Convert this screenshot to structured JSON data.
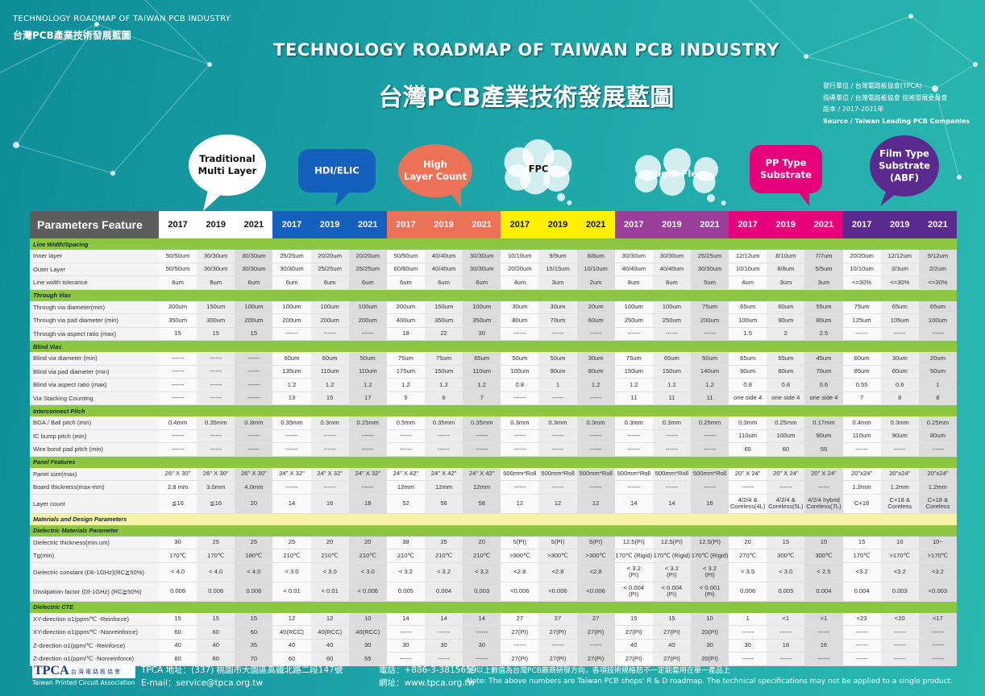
{
  "header": {
    "small_title": "TECHNOLOGY ROADMAP OF TAIWAN PCB INDUSTRY",
    "small_title_zh": "台灣PCB產業技術發展藍圖",
    "title": "TECHNOLOGY ROADMAP OF TAIWAN PCB INDUSTRY",
    "title_zh": "台灣PCB產業技術發展藍圖",
    "info": [
      "發行單位 / 台灣電路板協會(TPCA)",
      "指導單位 / 台灣電路板協會 技術發展委員會",
      "版本 / 2017-2021年",
      "Source / Taiwan Leading PCB Companies"
    ]
  },
  "table": {
    "header_label": "Parameters Feature",
    "groups": [
      {
        "name": "Traditional\nMulti Layer",
        "years": [
          2017,
          2019,
          2021
        ]
      },
      {
        "name": "HDI/ELIC",
        "years": [
          2017,
          2019,
          2021
        ]
      },
      {
        "name": "High\nLayer Count",
        "years": [
          2017,
          2019,
          2021
        ]
      },
      {
        "name": "FPC",
        "years": [
          2017,
          2019,
          2021
        ]
      },
      {
        "name": "Rigid-Flex",
        "years": [
          2017,
          2019,
          2021
        ]
      },
      {
        "name": "PP Type\nSubstrate",
        "years": [
          2017,
          2019,
          2021
        ]
      },
      {
        "name": "Film Type\nSubstrate\n(ABF)",
        "years": [
          2017,
          2019,
          2021
        ]
      }
    ],
    "sections": [
      {
        "title": "Line Width/Spacing",
        "rows": [
          {
            "label": "Inner layer",
            "cells": [
              "50/50um",
              "30/30um",
              "30/30um",
              "25/25um",
              "20/20um",
              "20/20um",
              "50/50um",
              "40/40um",
              "30/30um",
              "10/10um",
              "9/9um",
              "8/8um",
              "30/30um",
              "30/30um",
              "25/25um",
              "12/12um",
              "8/10um",
              "7/7um",
              "20/20um",
              "12/12um",
              "9/12um"
            ]
          },
          {
            "label": "Outer Layer",
            "cells": [
              "50/50um",
              "30/30um",
              "30/30um",
              "30/30um",
              "25/25um",
              "25/25um",
              "60/60um",
              "40/40um",
              "30/30um",
              "20/20um",
              "15/15um",
              "10/10um",
              "40/40um",
              "40/40um",
              "30/30um",
              "10/10um",
              "8/8um",
              "5/5um",
              "10/10um",
              "3/3um",
              "2/2um"
            ]
          },
          {
            "label": "Line width tolerance",
            "cells": [
              "8um",
              "8um",
              "6um",
              "6um",
              "6um",
              "6um",
              "6um",
              "6um",
              "6um",
              "4um",
              "3um",
              "2um",
              "8um",
              "8um",
              "5um",
              "4um",
              "3um",
              "3um",
              "<=30%",
              "<=30%",
              "<=30%"
            ]
          }
        ]
      },
      {
        "title": "Through Vias",
        "rows": [
          {
            "label": "Through via diameter(min)",
            "cells": [
              "200um",
              "150um",
              "100um",
              "100um",
              "100um",
              "100um",
              "200um",
              "150um",
              "100um",
              "30um",
              "30um",
              "20um",
              "100um",
              "100um",
              "75um",
              "65um",
              "60um",
              "55um",
              "75um",
              "65um",
              "65um"
            ]
          },
          {
            "label": "Through via pad diameter (min)",
            "cells": [
              "350um",
              "300um",
              "200um",
              "200um",
              "200um",
              "200um",
              "400um",
              "350um",
              "350um",
              "80um",
              "70um",
              "60um",
              "250um",
              "250um",
              "200um",
              "100um",
              "90um",
              "80um",
              "125um",
              "105um",
              "100um"
            ]
          },
          {
            "label": "Through via aspect ratio (max)",
            "cells": [
              "15",
              "15",
              "15",
              "------",
              "------",
              "------",
              "18",
              "22",
              "30",
              "------",
              "------",
              "------",
              "------",
              "------",
              "------",
              "1.5",
              "2",
              "2.5",
              "------",
              "------",
              "------"
            ]
          }
        ]
      },
      {
        "title": "Blind Vias",
        "rows": [
          {
            "label": "Blind via diameter (min)",
            "cells": [
              "------",
              "------",
              "------",
              "60um",
              "60um",
              "50um",
              "75um",
              "75um",
              "65um",
              "50um",
              "50um",
              "30um",
              "75um",
              "65um",
              "50um",
              "65um",
              "55um",
              "45um",
              "60um",
              "30um",
              "20um"
            ]
          },
          {
            "label": "Blind via pad diameter (min)",
            "cells": [
              "------",
              "------",
              "------",
              "135um",
              "110um",
              "110um",
              "175um",
              "150um",
              "110um",
              "100um",
              "90um",
              "80um",
              "150um",
              "150um",
              "140um",
              "90um",
              "80um",
              "70um",
              "85um",
              "60um",
              "50um"
            ]
          },
          {
            "label": "Blind via aspect ratio (max)",
            "cells": [
              "------",
              "------",
              "------",
              "1.2",
              "1.2",
              "1.2",
              "1.2",
              "1.2",
              "1.2",
              "0.8",
              "1",
              "1.2",
              "1.2",
              "1.2",
              "1.2",
              "0.8",
              "0.8",
              "0.6",
              "0.55",
              "0.6",
              "1"
            ]
          },
          {
            "label": "Via Stacking Counting",
            "cells": [
              "------",
              "------",
              "------",
              "13",
              "15",
              "17",
              "5",
              "6",
              "7",
              "------",
              "------",
              "------",
              "11",
              "11",
              "11",
              "one side 4",
              "one side 4",
              "one side 4",
              "7",
              "8",
              "8"
            ]
          }
        ]
      },
      {
        "title": "Interconnect Pitch",
        "rows": [
          {
            "label": "BGA / Ball pitch (min)",
            "cells": [
              "0.4mm",
              "0.35mm",
              "0.3mm",
              "0.35mm",
              "0.3mm",
              "0.25mm",
              "0.5mm",
              "0.35mm",
              "0.35mm",
              "0.3mm",
              "0.3mm",
              "0.3mm",
              "0.3mm",
              "0.3mm",
              "0.25mm",
              "0.3mm",
              "0.25mm",
              "0.17mm",
              "0.4mm",
              "0.3mm",
              "0.25mm"
            ]
          },
          {
            "label": "IC bump pitch (min)",
            "cells": [
              "------",
              "------",
              "------",
              "------",
              "------",
              "------",
              "------",
              "------",
              "------",
              "------",
              "------",
              "------",
              "------",
              "------",
              "------",
              "110um",
              "100um",
              "90um",
              "110um",
              "90um",
              "80um"
            ]
          },
          {
            "label": "Wire bond pad pitch (min)",
            "cells": [
              "------",
              "------",
              "------",
              "------",
              "------",
              "------",
              "------",
              "------",
              "------",
              "------",
              "------",
              "------",
              "------",
              "------",
              "------",
              "65",
              "60",
              "55",
              "------",
              "------",
              "------"
            ]
          }
        ]
      },
      {
        "title": "Panel Features",
        "rows": [
          {
            "label": "Panel size(max)",
            "cells": [
              "26\" X 30\"",
              "26\" X 30\"",
              "26\" X 30\"",
              "24\" X 32\"",
              "24\" X 32\"",
              "24\" X 32\"",
              "24\" X 42\"",
              "24\" X 42\"",
              "24\" X 42\"",
              "500mm*Roll",
              "500mm*Roll",
              "500mm*Roll",
              "500mm*Roll",
              "500mm*Roll",
              "500mm*Roll",
              "20\" X 24\"",
              "20\" X 24\"",
              "20\" X 24\"",
              "20\"x24\"",
              "20\"x24\"",
              "20\"x24\""
            ]
          },
          {
            "label": "Board thickness(max-mm)",
            "cells": [
              "2.8 mm",
              "3.0mm",
              "4.0mm",
              "------",
              "------",
              "------",
              "12mm",
              "12mm",
              "12mm",
              "------",
              "------",
              "------",
              "------",
              "------",
              "------",
              "------",
              "------",
              "------",
              "1.2mm",
              "1.2mm",
              "1.2mm"
            ]
          },
          {
            "label": "Layer count",
            "cells": [
              "≦16",
              "≦16",
              "20",
              "14",
              "16",
              "18",
              "52",
              "56",
              "58",
              "12",
              "12",
              "12",
              "14",
              "14",
              "16",
              "4/2/4 &\nCoreless(4L)",
              "4/2/4 &\nCoreless(5L)",
              "4/2/4 hybrid\nCoreless(7L)",
              "C+16",
              "C+18 &\nCoreless",
              "C+18 &\nCoreless"
            ]
          }
        ]
      },
      {
        "title": "Materials and Design Parameters",
        "rows": []
      },
      {
        "title": "Dielectric Materials Parameter",
        "rows": [
          {
            "label": "Dielectric thickness(min.um)",
            "cells": [
              "30",
              "25",
              "25",
              "25",
              "20",
              "20",
              "38",
              "25",
              "20",
              "5(PI)",
              "5(PI)",
              "5(PI)",
              "12.5(PI)",
              "12.5(PI)",
              "12.5(PI)",
              "20",
              "15",
              "10",
              "15",
              "10",
              "10~"
            ]
          },
          {
            "label": "Tg(min)",
            "cells": [
              "170℃",
              "170℃",
              "180℃",
              "210℃",
              "210℃",
              "210℃",
              "210℃",
              "210℃",
              "210℃",
              ">300℃",
              ">300℃",
              ">300℃",
              "170℃ (Rigid)",
              "170℃ (Rigid)",
              "170℃ (Rigid)",
              "270℃",
              "300℃",
              "300℃",
              "170℃",
              ">170℃",
              ">170℃"
            ]
          },
          {
            "label": "Dielectric constant (Dk-1GHz)(RC≧50%)",
            "cells": [
              "< 4.0",
              "< 4.0",
              "< 4.0",
              "< 3.0",
              "< 3.0",
              "< 3.0",
              "< 3.2",
              "< 3.2",
              "< 3.2",
              "<2.8",
              "<2.8",
              "<2.8",
              "< 3.2\n(PI)",
              "< 3.2\n(PI)",
              "< 3.2\n(PI)",
              "< 3.5",
              "< 3.0",
              "< 2.5",
              "<3.2",
              "<3.2",
              "<3.2"
            ]
          },
          {
            "label": "Dissipation factor (Df-1GHz) (RC≧50%)",
            "cells": [
              "0.006",
              "0.006",
              "0.006",
              "< 0.01",
              "< 0.01",
              "< 0.006",
              "0.005",
              "0.004",
              "0.003",
              "<0.006",
              "<0.006",
              "<0.006",
              "< 0.004\n(PI)",
              "< 0.004\n(PI)",
              "< 0.001\n(PI)",
              "0.006",
              "0.005",
              "0.004",
              "0.004",
              "0.003",
              "<0.003"
            ]
          }
        ]
      },
      {
        "title": "Dielectric CTE",
        "rows": [
          {
            "label": "XY-direction α1(ppm/℃ -Reinforce)",
            "cells": [
              "15",
              "15",
              "15",
              "12",
              "12",
              "10",
              "14",
              "14",
              "14",
              "27",
              "27",
              "27",
              "15",
              "15",
              "10",
              "1",
              "<1",
              "<1",
              "<23",
              "<20",
              "<17"
            ]
          },
          {
            "label": "XY-direction α1(ppm/℃ -Nonreinforce)",
            "cells": [
              "60",
              "60",
              "60",
              "40(RCC)",
              "40(RCC)",
              "40(RCC)",
              "------",
              "------",
              "------",
              "27(PI)",
              "27(PI)",
              "27(PI)",
              "27(PI)",
              "27(PI)",
              "20(PI)",
              "------",
              "------",
              "------",
              "------",
              "------",
              "------"
            ]
          },
          {
            "label": "Z-direction α1(ppm/℃ -Reinforce)",
            "cells": [
              "40",
              "40",
              "35",
              "40",
              "40",
              "30",
              "30",
              "30",
              "30",
              "------",
              "------",
              "------",
              "40",
              "40",
              "30",
              "30",
              "18",
              "16",
              "------",
              "------",
              "------"
            ]
          },
          {
            "label": "Z-direction α1(ppm/℃ -Nonreinforce)",
            "cells": [
              "80",
              "80",
              "70",
              "60",
              "60",
              "55",
              "------",
              "------",
              "------",
              "27(PI)",
              "27(PI)",
              "27(PI)",
              "27(PI)",
              "27(PI)",
              "20(PI)",
              "------",
              "------",
              "------",
              "------",
              "------",
              "------"
            ]
          }
        ]
      }
    ]
  },
  "footer": {
    "logo": "TPCA",
    "logo_zh": "台灣電路板協會",
    "logo_en": "Taiwan Printed Circuit Association",
    "address": "TPCA  地址：(337) 桃園市大園區高鐵北路二段147號",
    "phone": "電話：+886-3-3815659",
    "email": "E-mail：service@tpca.org.tw",
    "web": "網址：www.tpca.org.tw",
    "note_zh": "注:以上數值為台灣PCB廠商研發方向，各項技術規格恕不一定能套用在單一產品上",
    "note_en": "Note: The above numbers are Taiwan PCB shops' R & D roadmap. The technical specifications may not be applied to a single product."
  }
}
